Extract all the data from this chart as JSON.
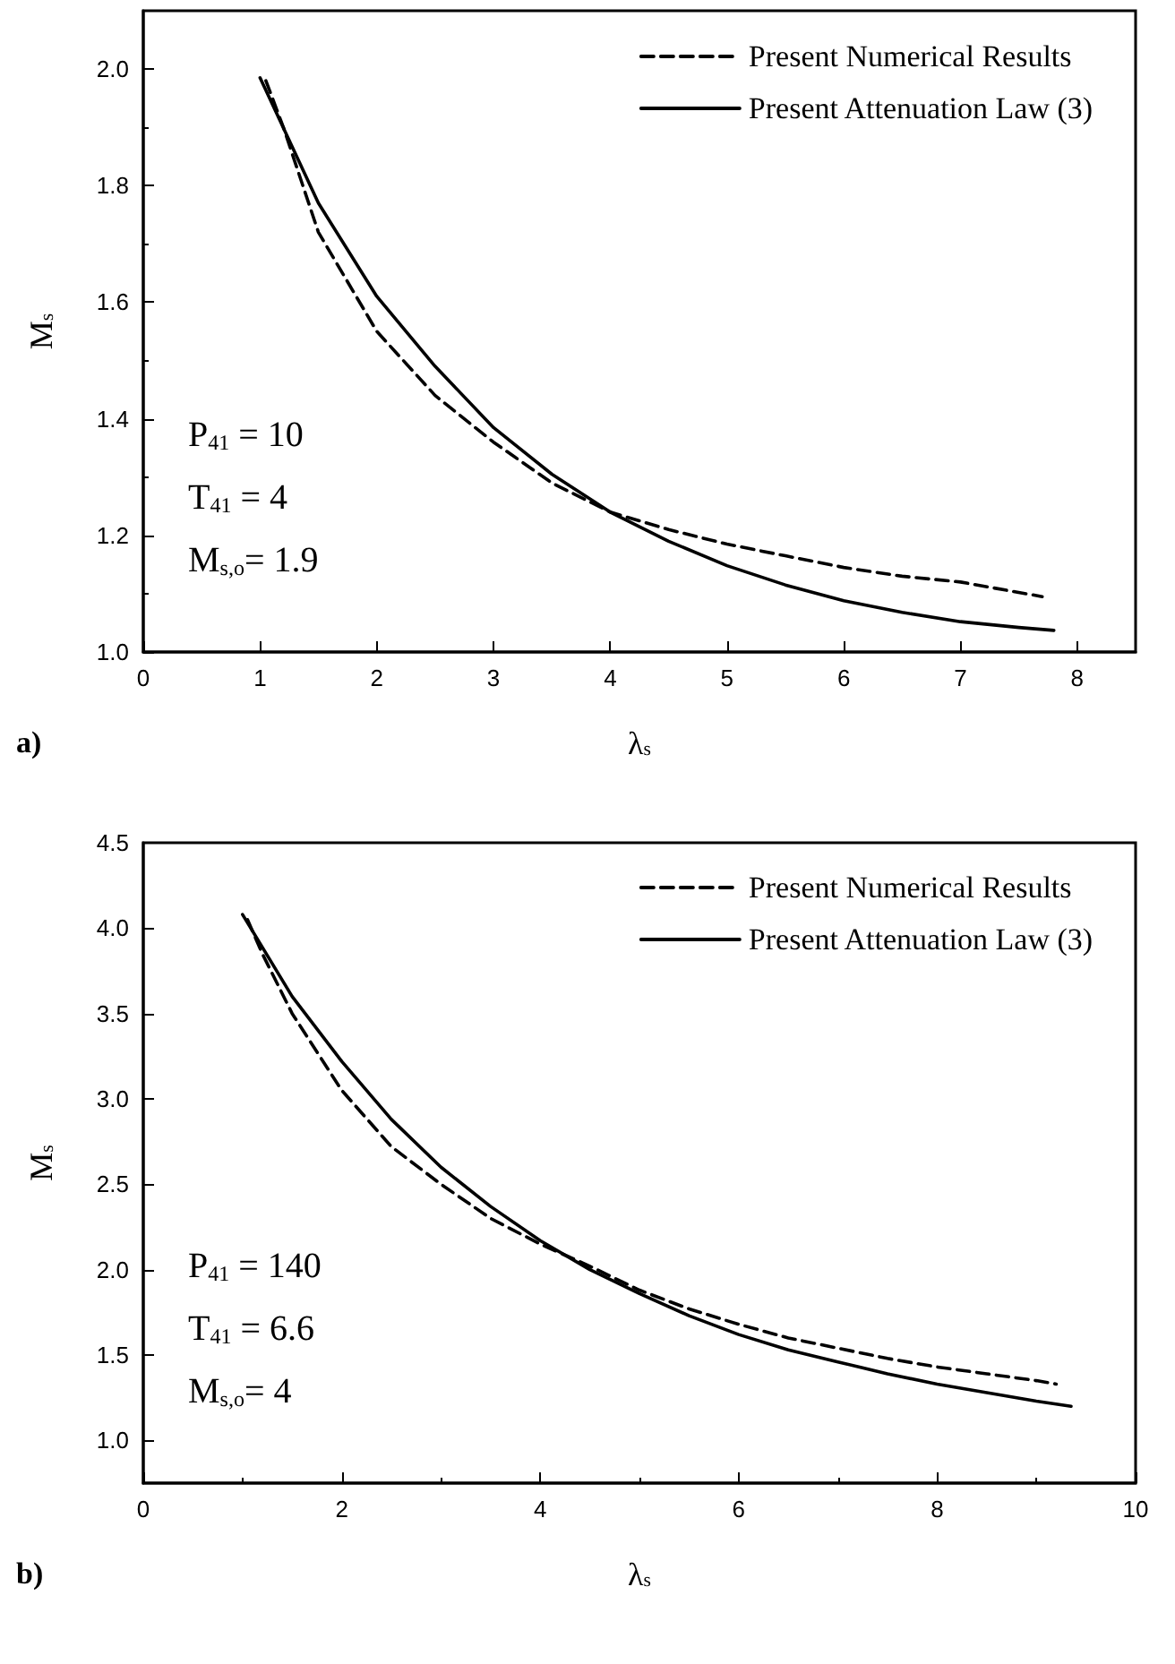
{
  "chart_data": [
    {
      "type": "line",
      "title": "a)",
      "xlabel": "λ$_{s}$",
      "ylabel": "M$_{s}$",
      "annotations": [
        "P$_{41}$ = 10",
        "T$_{41}$ = 4",
        "M$_{s,o}$= 1.9"
      ],
      "xlim": [
        0,
        8.5
      ],
      "ylim": [
        1.0,
        2.1
      ],
      "xticks": [
        0,
        1,
        2,
        3,
        4,
        5,
        6,
        7,
        8
      ],
      "yticks": [
        {
          "value": 1.0,
          "label": "1.0"
        },
        {
          "value": 1.2,
          "label": "1.2"
        },
        {
          "value": 1.4,
          "label": "1.4"
        },
        {
          "value": 1.6,
          "label": "1.6"
        },
        {
          "value": 1.8,
          "label": "1.8"
        },
        {
          "value": 2.0,
          "label": "2.0"
        }
      ],
      "grid": false,
      "legend": "top right",
      "marker": "none",
      "series": [
        {
          "name": "Present Numerical Results",
          "color": "#000000",
          "line_style": "dashed",
          "x": [
            1.05,
            1.2,
            1.5,
            2,
            2.5,
            3,
            3.5,
            4,
            4.5,
            5,
            5.5,
            6,
            6.5,
            7,
            7.7
          ],
          "values": [
            1.98,
            1.9,
            1.72,
            1.55,
            1.44,
            1.36,
            1.29,
            1.24,
            1.21,
            1.185,
            1.165,
            1.145,
            1.13,
            1.12,
            1.095
          ]
        },
        {
          "name": "Present Attenuation Law (3)",
          "color": "#000000",
          "line_style": "solid",
          "x": [
            1,
            1.5,
            2,
            2.5,
            3,
            3.5,
            4,
            4.5,
            5,
            5.5,
            6,
            6.5,
            7,
            7.5,
            7.8
          ],
          "values": [
            1.985,
            1.77,
            1.61,
            1.49,
            1.385,
            1.305,
            1.24,
            1.19,
            1.148,
            1.115,
            1.088,
            1.068,
            1.052,
            1.042,
            1.037
          ]
        }
      ]
    },
    {
      "type": "line",
      "title": "b)",
      "xlabel": "λ$_{s}$",
      "ylabel": "M$_{s}$",
      "annotations": [
        "P$_{41}$ = 140",
        "T$_{41}$ = 6.6",
        "M$_{s,o}$= 4"
      ],
      "xlim": [
        0,
        10
      ],
      "ylim": [
        0.75,
        4.5
      ],
      "xticks": [
        0,
        2,
        4,
        6,
        8,
        10
      ],
      "yticks": [
        {
          "value": 1.0,
          "label": "1.0"
        },
        {
          "value": 1.5,
          "label": "1.5"
        },
        {
          "value": 2.0,
          "label": "2.0"
        },
        {
          "value": 2.5,
          "label": "2.5"
        },
        {
          "value": 3.0,
          "label": "3.0"
        },
        {
          "value": 3.5,
          "label": "3.5"
        },
        {
          "value": 4.0,
          "label": "4.0"
        },
        {
          "value": 4.5,
          "label": "4.5"
        }
      ],
      "grid": false,
      "legend": "top right",
      "marker": "none",
      "series": [
        {
          "name": "Present Numerical Results",
          "color": "#000000",
          "line_style": "dashed",
          "x": [
            1.05,
            1.2,
            1.5,
            2,
            2.5,
            3,
            3.5,
            4,
            4.5,
            5,
            5.5,
            6,
            6.5,
            7,
            7.5,
            8,
            8.5,
            9,
            9.2
          ],
          "values": [
            4.05,
            3.85,
            3.5,
            3.05,
            2.72,
            2.5,
            2.3,
            2.15,
            2.02,
            1.88,
            1.77,
            1.68,
            1.6,
            1.54,
            1.48,
            1.43,
            1.39,
            1.35,
            1.33
          ]
        },
        {
          "name": "Present Attenuation Law (3)",
          "color": "#000000",
          "line_style": "solid",
          "x": [
            1,
            1.5,
            2,
            2.5,
            3,
            3.5,
            4,
            4.5,
            5,
            5.5,
            6,
            6.5,
            7,
            7.5,
            8,
            8.5,
            9,
            9.35
          ],
          "values": [
            4.08,
            3.6,
            3.22,
            2.88,
            2.6,
            2.37,
            2.17,
            2.0,
            1.86,
            1.73,
            1.62,
            1.53,
            1.46,
            1.39,
            1.33,
            1.28,
            1.23,
            1.2
          ]
        }
      ]
    }
  ]
}
